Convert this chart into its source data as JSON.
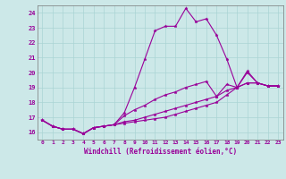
{
  "xlabel": "Windchill (Refroidissement éolien,°C)",
  "background_color": "#cce8e8",
  "grid_color": "#aad4d4",
  "line_color": "#990099",
  "xlim": [
    -0.5,
    23.5
  ],
  "ylim": [
    15.5,
    24.5
  ],
  "xticks": [
    0,
    1,
    2,
    3,
    4,
    5,
    6,
    7,
    8,
    9,
    10,
    11,
    12,
    13,
    14,
    15,
    16,
    17,
    18,
    19,
    20,
    21,
    22,
    23
  ],
  "yticks": [
    16,
    17,
    18,
    19,
    20,
    21,
    22,
    23,
    24
  ],
  "line1": [
    16.8,
    16.4,
    16.2,
    16.2,
    15.9,
    16.3,
    16.4,
    16.5,
    17.3,
    19.0,
    20.9,
    22.8,
    23.1,
    23.1,
    24.3,
    23.4,
    23.6,
    22.5,
    20.9,
    19.0,
    20.1,
    19.3,
    19.1,
    19.1
  ],
  "line2": [
    16.8,
    16.4,
    16.2,
    16.2,
    15.9,
    16.3,
    16.4,
    16.5,
    17.1,
    17.5,
    17.8,
    18.2,
    18.5,
    18.7,
    19.0,
    19.2,
    19.4,
    18.4,
    19.2,
    19.0,
    20.0,
    19.3,
    19.1,
    19.1
  ],
  "line3": [
    16.8,
    16.4,
    16.2,
    16.2,
    15.9,
    16.3,
    16.4,
    16.5,
    16.7,
    16.8,
    17.0,
    17.2,
    17.4,
    17.6,
    17.8,
    18.0,
    18.2,
    18.4,
    18.8,
    19.0,
    19.3,
    19.3,
    19.1,
    19.1
  ],
  "line4": [
    16.8,
    16.4,
    16.2,
    16.2,
    15.9,
    16.3,
    16.4,
    16.5,
    16.6,
    16.7,
    16.8,
    16.9,
    17.0,
    17.2,
    17.4,
    17.6,
    17.8,
    18.0,
    18.5,
    19.0,
    19.3,
    19.3,
    19.1,
    19.1
  ]
}
